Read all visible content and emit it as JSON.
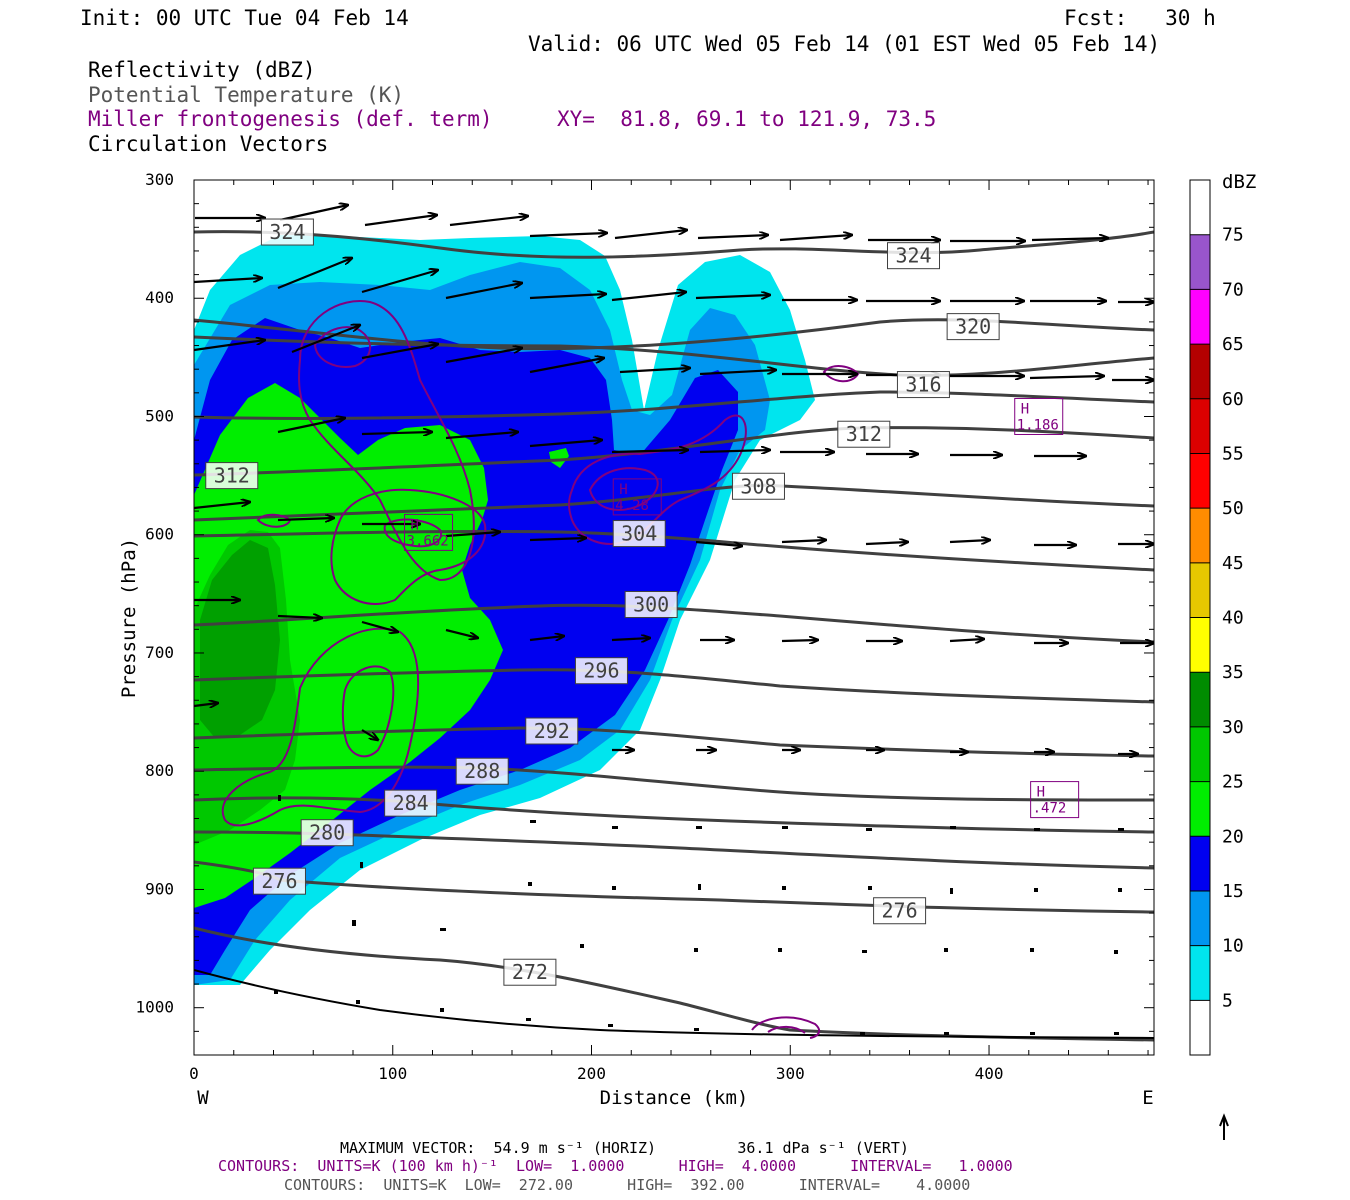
{
  "header": {
    "init": "Init: 00 UTC Tue 04 Feb 14",
    "fcst": "Fcst:   30 h",
    "valid": "Valid: 06 UTC Wed 05 Feb 14 (01 EST Wed 05 Feb 14)"
  },
  "fields": {
    "reflectivity": "Reflectivity (dBZ)",
    "theta": "Potential Temperature (K)",
    "frontogenesis": "Miller frontogenesis (def. term)",
    "xy": "XY=  81.8, 69.1 to 121.9, 73.5",
    "vectors": "Circulation Vectors"
  },
  "footer": {
    "max_vector": "MAXIMUM VECTOR:  54.9 m s⁻¹ (HORIZ)         36.1 dPa s⁻¹ (VERT)",
    "contours_purple": "CONTOURS:  UNITS=K (100 km h)⁻¹  LOW=  1.0000      HIGH=  4.0000      INTERVAL=   1.0000",
    "contours_gray": "CONTOURS:  UNITS=K  LOW=  272.00      HIGH=  392.00      INTERVAL=    4.0000"
  },
  "chart_data": {
    "type": "heatmap",
    "xlabel": "Distance (km)",
    "ylabel": "Pressure (hPa)",
    "xlim": [
      0,
      483
    ],
    "ylim": [
      1040,
      300
    ],
    "x_ticks": [
      0,
      100,
      200,
      300,
      400
    ],
    "y_ticks": [
      300,
      400,
      500,
      600,
      700,
      800,
      900,
      1000
    ],
    "x_end_labels": {
      "left": "W",
      "right": "E"
    },
    "colorbar": {
      "title": "dBZ",
      "levels": [
        5,
        10,
        15,
        20,
        25,
        30,
        35,
        40,
        45,
        50,
        55,
        60,
        65,
        70,
        75
      ],
      "colors": [
        "#ffffff",
        "#00e5ee",
        "#0096f0",
        "#0000f0",
        "#00ee00",
        "#00c800",
        "#008c00",
        "#ffff00",
        "#e6c800",
        "#ff8c00",
        "#ff0000",
        "#dc0000",
        "#b40000",
        "#ff00ff",
        "#9955cc"
      ]
    },
    "theta_contours": {
      "units": "K",
      "labels": [
        {
          "value": 324,
          "x": 47,
          "p": 344
        },
        {
          "value": 324,
          "x": 362,
          "p": 364
        },
        {
          "value": 320,
          "x": 392,
          "p": 424
        },
        {
          "value": 316,
          "x": 367,
          "p": 473
        },
        {
          "value": 312,
          "x": 337,
          "p": 515
        },
        {
          "value": 312,
          "x": 19,
          "p": 550
        },
        {
          "value": 308,
          "x": 284,
          "p": 559
        },
        {
          "value": 304,
          "x": 224,
          "p": 599
        },
        {
          "value": 300,
          "x": 230,
          "p": 659
        },
        {
          "value": 296,
          "x": 205,
          "p": 715
        },
        {
          "value": 292,
          "x": 180,
          "p": 766
        },
        {
          "value": 288,
          "x": 145,
          "p": 800
        },
        {
          "value": 284,
          "x": 109,
          "p": 827
        },
        {
          "value": 280,
          "x": 67,
          "p": 852
        },
        {
          "value": 276,
          "x": 43,
          "p": 893
        },
        {
          "value": 276,
          "x": 355,
          "p": 918
        },
        {
          "value": 272,
          "x": 169,
          "p": 970
        }
      ]
    },
    "frontogenesis_maxima": [
      {
        "label": "H",
        "value": "3.662",
        "x": 117,
        "p": 598
      },
      {
        "label": "H",
        "value": "4.28",
        "x": 222,
        "p": 568
      },
      {
        "label": "H",
        "value": "1.186",
        "x": 424,
        "p": 500
      },
      {
        "label": "H",
        "value": ".472",
        "x": 432,
        "p": 824
      }
    ],
    "contour_levels": {
      "theta": {
        "low": 272.0,
        "high": 392.0,
        "interval": 4.0
      },
      "frontogenesis": {
        "low": 1.0,
        "high": 4.0,
        "interval": 1.0
      }
    }
  }
}
